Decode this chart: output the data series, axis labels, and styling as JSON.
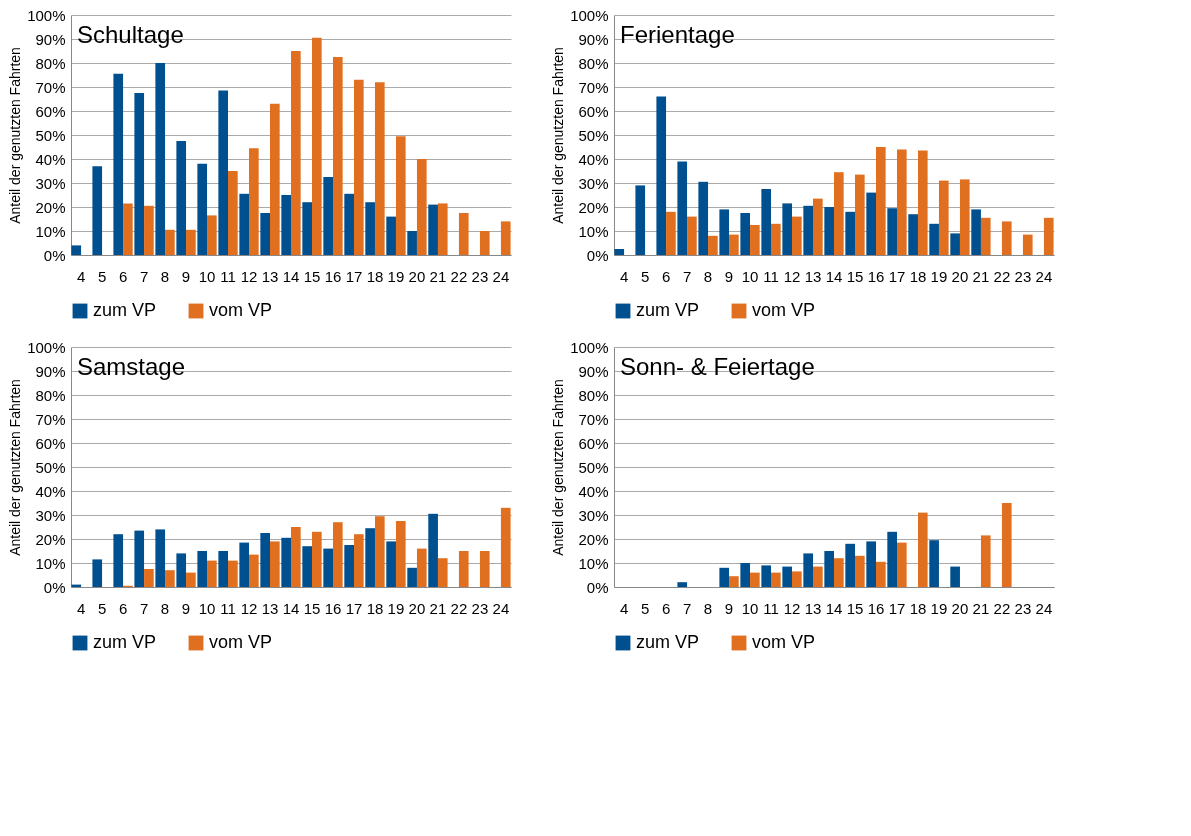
{
  "chart_data": [
    {
      "type": "bar",
      "title": "Schultage",
      "ylabel": "Anteil der genutzten Fahrten",
      "categories": [
        "4",
        "5",
        "6",
        "7",
        "8",
        "9",
        "10",
        "11",
        "12",
        "13",
        "14",
        "15",
        "16",
        "17",
        "18",
        "19",
        "20",
        "21",
        "22",
        "23",
        "24"
      ],
      "series": [
        {
          "name": "zum VP",
          "color": "#00508f",
          "values": [
            4,
            37,
            75.5,
            67.5,
            80,
            47.5,
            38,
            68.5,
            25.5,
            17.5,
            25,
            22,
            32.5,
            25.5,
            22,
            16,
            10,
            21,
            0,
            0,
            0
          ]
        },
        {
          "name": "vom VP",
          "color": "#e07020",
          "values": [
            0,
            0,
            21.5,
            20.5,
            10.5,
            10.5,
            16.5,
            35,
            44.5,
            63,
            85,
            90.5,
            82.5,
            73,
            72,
            49.5,
            40,
            21.5,
            17.5,
            10,
            14
          ]
        }
      ],
      "ylim": [
        0,
        100
      ],
      "yticks": [
        {
          "value": 0,
          "label": "0%"
        },
        {
          "value": 10,
          "label": "10%"
        },
        {
          "value": 20,
          "label": "20%"
        },
        {
          "value": 30,
          "label": "30%"
        },
        {
          "value": 40,
          "label": "40%"
        },
        {
          "value": 50,
          "label": "50%"
        },
        {
          "value": 60,
          "label": "60%"
        },
        {
          "value": 70,
          "label": "70%"
        },
        {
          "value": 80,
          "label": "80%"
        },
        {
          "value": 90,
          "label": "90%"
        },
        {
          "value": 100,
          "label": "100%"
        }
      ],
      "grid": "y",
      "legend": "bottom"
    },
    {
      "type": "bar",
      "title": "Ferientage",
      "ylabel": "Anteil der genutzten Fahrten",
      "categories": [
        "4",
        "5",
        "6",
        "7",
        "8",
        "9",
        "10",
        "11",
        "12",
        "13",
        "14",
        "15",
        "16",
        "17",
        "18",
        "19",
        "20",
        "21",
        "22",
        "23",
        "24"
      ],
      "series": [
        {
          "name": "zum VP",
          "color": "#00508f",
          "values": [
            2.5,
            29,
            66,
            39,
            30.5,
            19,
            17.5,
            27.5,
            21.5,
            20.5,
            20,
            18,
            26,
            19.5,
            17,
            13,
            9,
            19,
            0,
            0,
            0
          ]
        },
        {
          "name": "vom VP",
          "color": "#e07020",
          "values": [
            0,
            0,
            18,
            16,
            8,
            8.5,
            12.5,
            13,
            16,
            23.5,
            34.5,
            33.5,
            45,
            44,
            43.5,
            31,
            31.5,
            15.5,
            14,
            8.5,
            15.5
          ]
        }
      ],
      "ylim": [
        0,
        100
      ],
      "yticks": [
        {
          "value": 0,
          "label": "0%"
        },
        {
          "value": 10,
          "label": "10%"
        },
        {
          "value": 20,
          "label": "20%"
        },
        {
          "value": 30,
          "label": "30%"
        },
        {
          "value": 40,
          "label": "40%"
        },
        {
          "value": 50,
          "label": "50%"
        },
        {
          "value": 60,
          "label": "60%"
        },
        {
          "value": 70,
          "label": "70%"
        },
        {
          "value": 80,
          "label": "80%"
        },
        {
          "value": 90,
          "label": "90%"
        },
        {
          "value": 100,
          "label": "100%"
        }
      ],
      "grid": "y",
      "legend": "bottom"
    },
    {
      "type": "bar",
      "title": "Samstage",
      "ylabel": "Anteil der genutzten Fahrten",
      "categories": [
        "4",
        "5",
        "6",
        "7",
        "8",
        "9",
        "10",
        "11",
        "12",
        "13",
        "14",
        "15",
        "16",
        "17",
        "18",
        "19",
        "20",
        "21",
        "22",
        "23",
        "24"
      ],
      "series": [
        {
          "name": "zum VP",
          "color": "#00508f",
          "values": [
            1,
            11.5,
            22,
            23.5,
            24,
            14,
            15,
            15,
            18.5,
            22.5,
            20.5,
            17,
            16,
            17.5,
            24.5,
            19,
            8,
            30.5,
            0,
            0,
            0
          ]
        },
        {
          "name": "vom VP",
          "color": "#e07020",
          "values": [
            0,
            0,
            0.5,
            7.5,
            7,
            6,
            11,
            11,
            13.5,
            19,
            25,
            23,
            27,
            22,
            29.5,
            27.5,
            16,
            12,
            15,
            15,
            33
          ]
        }
      ],
      "ylim": [
        0,
        100
      ],
      "yticks": [
        {
          "value": 0,
          "label": "0%"
        },
        {
          "value": 10,
          "label": "10%"
        },
        {
          "value": 20,
          "label": "20%"
        },
        {
          "value": 30,
          "label": "30%"
        },
        {
          "value": 40,
          "label": "40%"
        },
        {
          "value": 50,
          "label": "50%"
        },
        {
          "value": 60,
          "label": "60%"
        },
        {
          "value": 70,
          "label": "70%"
        },
        {
          "value": 80,
          "label": "80%"
        },
        {
          "value": 90,
          "label": "90%"
        },
        {
          "value": 100,
          "label": "100%"
        }
      ],
      "grid": "y",
      "legend": "bottom"
    },
    {
      "type": "bar",
      "title": "Sonn- & Feiertage",
      "ylabel": "Anteil der genutzten Fahrten",
      "categories": [
        "4",
        "5",
        "6",
        "7",
        "8",
        "9",
        "10",
        "11",
        "12",
        "13",
        "14",
        "15",
        "16",
        "17",
        "18",
        "19",
        "20",
        "21",
        "22",
        "23",
        "24"
      ],
      "series": [
        {
          "name": "zum VP",
          "color": "#00508f",
          "values": [
            0,
            0,
            0,
            2,
            0,
            8,
            10,
            9,
            8.5,
            14,
            15,
            18,
            19,
            23,
            0,
            19.5,
            8.5,
            0,
            0,
            0,
            0
          ]
        },
        {
          "name": "vom VP",
          "color": "#e07020",
          "values": [
            0,
            0,
            0,
            0,
            0,
            4.5,
            6,
            6,
            6.5,
            8.5,
            12,
            13,
            10.5,
            18.5,
            31,
            0,
            0,
            21.5,
            35,
            0,
            0
          ]
        }
      ],
      "ylim": [
        0,
        100
      ],
      "yticks": [
        {
          "value": 0,
          "label": "0%"
        },
        {
          "value": 10,
          "label": "10%"
        },
        {
          "value": 20,
          "label": "20%"
        },
        {
          "value": 30,
          "label": "30%"
        },
        {
          "value": 40,
          "label": "40%"
        },
        {
          "value": 50,
          "label": "50%"
        },
        {
          "value": 60,
          "label": "60%"
        },
        {
          "value": 70,
          "label": "70%"
        },
        {
          "value": 80,
          "label": "80%"
        },
        {
          "value": 90,
          "label": "90%"
        },
        {
          "value": 100,
          "label": "100%"
        }
      ],
      "grid": "y",
      "legend": "bottom"
    }
  ]
}
